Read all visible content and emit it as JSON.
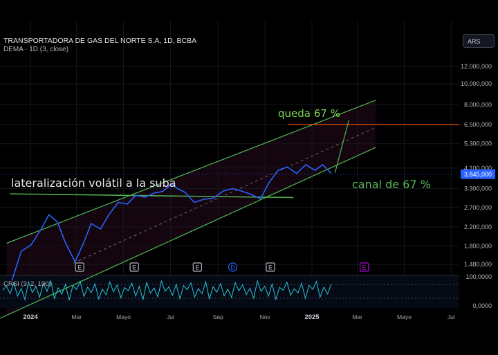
{
  "header": {
    "ticker": "TRANSPORTADORA DE GAS DEL NORTE S.A, 1D, BCBA",
    "study": "DEMA · 1D (3, close)",
    "currency_button": "ARS"
  },
  "indicator": {
    "label": "CRSI (3, 2, 100)",
    "scale_labels": [
      "100,0000",
      "0,0000"
    ]
  },
  "annotations": {
    "lateralization": "lateralización volátil a la suba",
    "target": "queda 67 %",
    "channel": "canal de 67 %"
  },
  "events": [
    {
      "label": "E",
      "date": "2024-03-05",
      "color": "#b2b5be"
    },
    {
      "label": "E",
      "date": "2024-05-15",
      "color": "#b2b5be"
    },
    {
      "label": "E",
      "date": "2024-08-05",
      "color": "#b2b5be"
    },
    {
      "label": "D",
      "date": "2024-09-20",
      "color": "#2962ff"
    },
    {
      "label": "E",
      "date": "2024-11-08",
      "color": "#b2b5be"
    },
    {
      "label": "E",
      "date": "2025-03-10",
      "color": "#b000d8"
    }
  ],
  "colors": {
    "price_line": "#2962ff",
    "channel_line": "#4caf50",
    "target_line": "#e65100",
    "lateral_line": "#4caf50",
    "oscillator": "#26c6da",
    "last_price_badge": "#2962ff"
  },
  "chart_data": {
    "type": "line",
    "scale": "log",
    "x_tick_labels": [
      "2024",
      "Mar",
      "Mayo",
      "Jul",
      "Sep",
      "Nov",
      "2025",
      "Mar",
      "Mayo",
      "Jul"
    ],
    "x_tick_dates": [
      "2024-01-01",
      "2024-03-01",
      "2024-05-01",
      "2024-07-01",
      "2024-09-01",
      "2024-11-01",
      "2025-01-01",
      "2025-03-01",
      "2025-05-01",
      "2025-07-01"
    ],
    "y_tick_labels": [
      "12.000,000",
      "10.000,000",
      "8.000,000",
      "6.500,000",
      "5.300,000",
      "4.100,000",
      "3.300,000",
      "2.700,000",
      "2.200,000",
      "1.800,000",
      "1.480,000"
    ],
    "y_tick_values": [
      12000,
      10000,
      8000,
      6500,
      5300,
      4100,
      3300,
      2700,
      2200,
      1800,
      1480
    ],
    "last_price_label": "3.845,000",
    "last_price": 3845,
    "target_level": 6500,
    "series": [
      {
        "x": [
          "2023-12-08",
          "2023-12-20",
          "2024-01-02",
          "2024-01-15",
          "2024-01-25",
          "2024-02-05",
          "2024-02-15",
          "2024-02-28",
          "2024-03-10",
          "2024-03-20",
          "2024-04-01",
          "2024-04-12",
          "2024-04-24",
          "2024-05-06",
          "2024-05-17",
          "2024-05-29",
          "2024-06-10",
          "2024-06-21",
          "2024-07-03",
          "2024-07-10",
          "2024-07-20",
          "2024-08-01",
          "2024-08-14",
          "2024-08-26",
          "2024-09-08",
          "2024-09-20",
          "2024-10-02",
          "2024-10-14",
          "2024-10-26",
          "2024-11-06",
          "2024-11-18",
          "2024-11-30",
          "2024-12-12",
          "2024-12-24",
          "2025-01-05",
          "2025-01-15",
          "2025-01-26"
        ],
        "y": [
          1250,
          1700,
          1820,
          2150,
          2500,
          2320,
          1880,
          1520,
          1850,
          2280,
          2150,
          2500,
          2850,
          2800,
          3070,
          3010,
          3150,
          3200,
          3470,
          3300,
          3170,
          2850,
          2950,
          2980,
          3220,
          3300,
          3210,
          3100,
          2960,
          3500,
          4000,
          4150,
          3870,
          4250,
          4000,
          4250,
          3870
        ]
      }
    ],
    "channel": {
      "upper": {
        "x": [
          "2023-12-01",
          "2025-03-25"
        ],
        "y": [
          1850,
          8400
        ]
      },
      "middle": {
        "x": [
          "2024-02-26",
          "2025-03-25"
        ],
        "y": [
          1500,
          6300
        ]
      },
      "lower": {
        "x": [
          "2024-03-01",
          "2025-03-25"
        ],
        "y": [
          1200,
          5100
        ]
      }
    },
    "lateral_support": {
      "x": [
        "2023-12-05",
        "2024-12-08"
      ],
      "y": [
        3120,
        3000
      ]
    },
    "projection": {
      "x": [
        "2025-01-31",
        "2025-02-18"
      ],
      "y": [
        3900,
        6800
      ]
    },
    "oscillator_values": [
      55,
      72,
      40,
      88,
      30,
      62,
      15,
      90,
      45,
      70,
      25,
      85,
      50,
      95,
      20,
      65,
      38,
      80,
      12,
      75,
      58,
      92,
      28,
      68,
      44,
      82,
      18,
      60,
      35,
      90,
      48,
      77,
      22,
      66,
      53,
      85,
      30,
      71,
      14,
      88,
      42,
      64,
      27,
      93,
      50,
      69,
      33,
      80,
      19,
      74,
      57,
      86,
      26,
      62,
      40,
      91,
      17,
      70,
      46,
      83,
      31,
      59,
      24,
      87,
      52,
      78,
      36,
      63,
      21,
      94,
      49,
      72,
      29,
      81,
      16,
      67,
      55,
      89,
      34,
      61,
      43,
      85,
      20,
      76,
      58,
      92,
      25,
      68,
      39,
      80
    ]
  }
}
